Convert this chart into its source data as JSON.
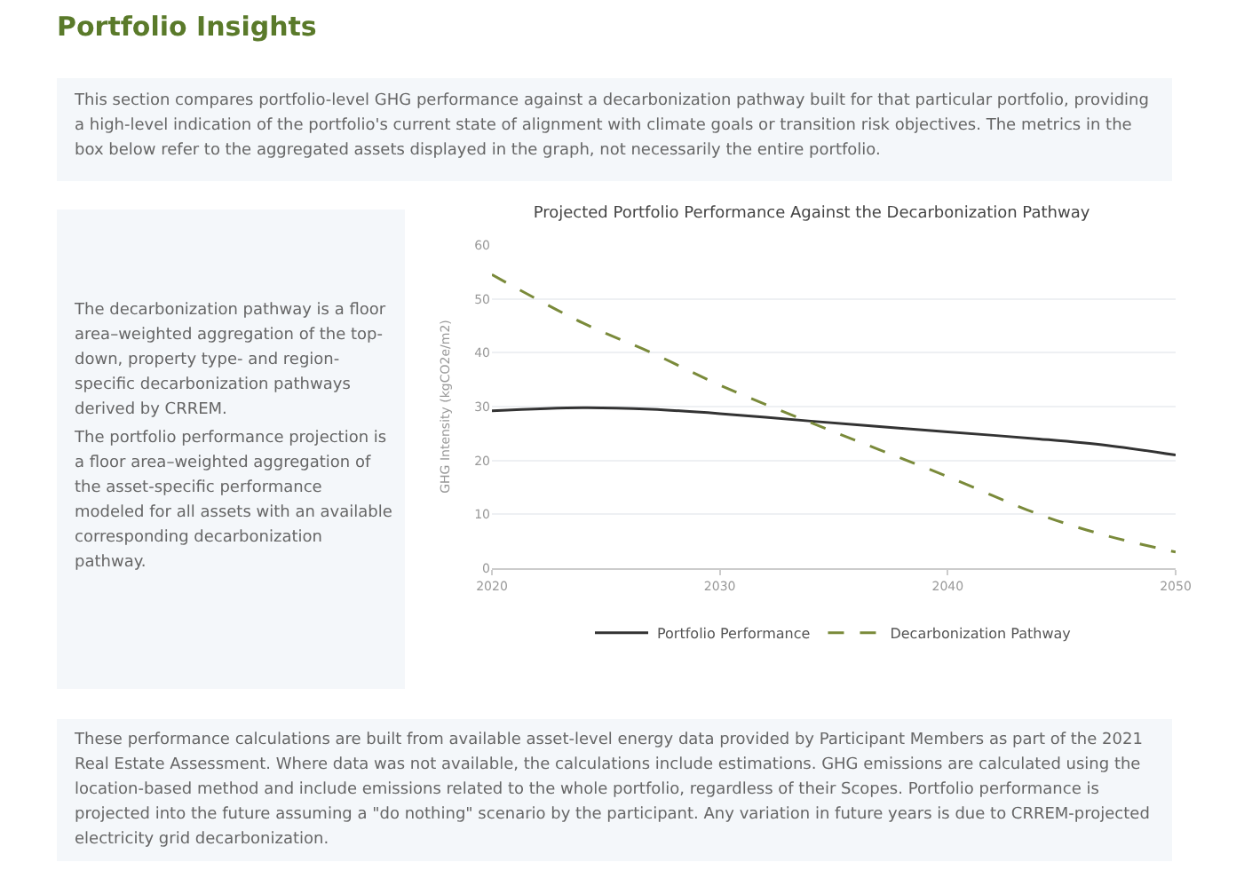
{
  "chart_data": {
    "type": "line",
    "title": "Projected Portfolio Performance Against the Decarbonization Pathway",
    "ylabel": "GHG Intensity (kgCO2e/m2)",
    "x": [
      2020,
      2024,
      2027,
      2030,
      2034,
      2037,
      2040,
      2044,
      2047,
      2050
    ],
    "series": [
      {
        "name": "Portfolio Performance",
        "color": "#333333",
        "line_style": "solid",
        "values": [
          29.2,
          29.8,
          29.5,
          28.7,
          27.3,
          26.3,
          25.3,
          24,
          22.8,
          21
        ]
      },
      {
        "name": "Decarbonization Pathway",
        "color": "#7a8a3a",
        "line_style": "dashed",
        "values": [
          54.5,
          45.5,
          40,
          34,
          27,
          22,
          17,
          10,
          6,
          3
        ]
      }
    ],
    "xlim": [
      2020,
      2050
    ],
    "xticks": [
      2020,
      2030,
      2040,
      2050
    ],
    "ylim": [
      0,
      60
    ],
    "yticks": [
      0,
      10,
      20,
      30,
      40,
      50,
      60
    ],
    "grid": "y",
    "legend": "bottom",
    "annotations": [
      "Portfolio Insights",
      "This section compares portfolio-level GHG performance against a decarbonization pathway built for that particular portfolio, providing a high-level indication of the portfolio's current state of alignment with climate goals or transition risk objectives. The metrics in the box below refer to the aggregated assets displayed in the graph, not necessarily the entire portfolio.",
      "The decarbonization pathway is a floor area–weighted aggregation of the top-down, property type- and region-specific decarbonization pathways derived by CRREM.",
      "The portfolio performance projection is a floor area–weighted aggregation of the asset-specific performance modeled for all assets with an available corresponding decarbonization pathway.",
      "These performance calculations are built from available asset-level energy data provided by Participant Members as part of the 2021 Real Estate Assessment. Where data was not available, the calculations include estimations. GHG emissions are calculated using the location-based method and include emissions related to the whole portfolio, regardless of their Scopes. Portfolio performance is projected into the future assuming a \"do nothing\" scenario by the participant. Any variation in future years is due to CRREM-projected electricity grid decarbonization."
    ]
  }
}
